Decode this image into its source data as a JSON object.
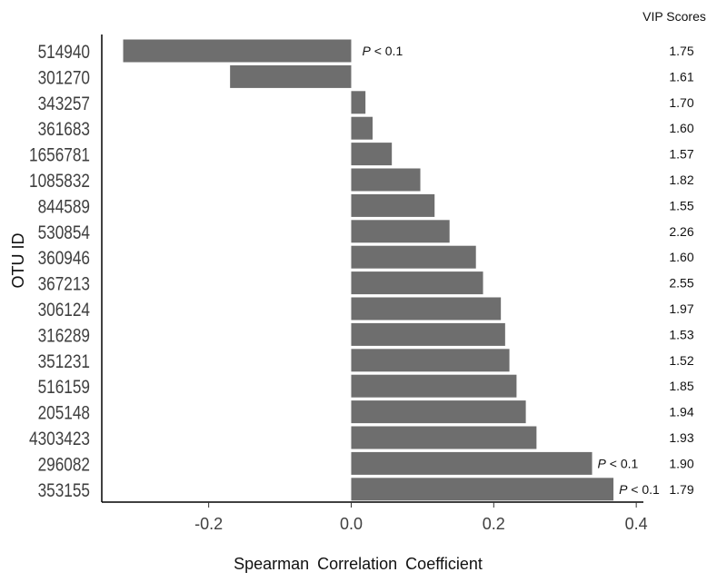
{
  "chart_data": {
    "type": "bar",
    "orientation": "horizontal",
    "xlabel": "Spearman Correlation Coefficient",
    "ylabel": "OTU ID",
    "xlim": [
      -0.35,
      0.41
    ],
    "xticks": [
      -0.2,
      0.0,
      0.2,
      0.4
    ],
    "xtick_labels": [
      "-0.2",
      "0.0",
      "0.2",
      "0.4"
    ],
    "grid": false,
    "bar_color": "#6e6e6e",
    "vip_title": "VIP Scores",
    "annotation_italic": "P",
    "annotation_rest": " < 0.1",
    "categories": [
      "514940",
      "301270",
      "343257",
      "361683",
      "1656781",
      "1085832",
      "844589",
      "530854",
      "360946",
      "367213",
      "306124",
      "316289",
      "351231",
      "516159",
      "205148",
      "4303423",
      "296082",
      "353155"
    ],
    "values": [
      -0.32,
      -0.17,
      0.02,
      0.03,
      0.057,
      0.097,
      0.117,
      0.138,
      0.175,
      0.185,
      0.21,
      0.216,
      0.222,
      0.232,
      0.245,
      0.26,
      0.338,
      0.368
    ],
    "vip_scores": [
      "1.75",
      "1.61",
      "1.70",
      "1.60",
      "1.57",
      "1.82",
      "1.55",
      "2.26",
      "1.60",
      "2.55",
      "1.97",
      "1.53",
      "1.52",
      "1.85",
      "1.94",
      "1.93",
      "1.90",
      "1.79"
    ],
    "significant": [
      true,
      false,
      false,
      false,
      false,
      false,
      false,
      false,
      false,
      false,
      false,
      false,
      false,
      false,
      false,
      false,
      true,
      true
    ]
  }
}
